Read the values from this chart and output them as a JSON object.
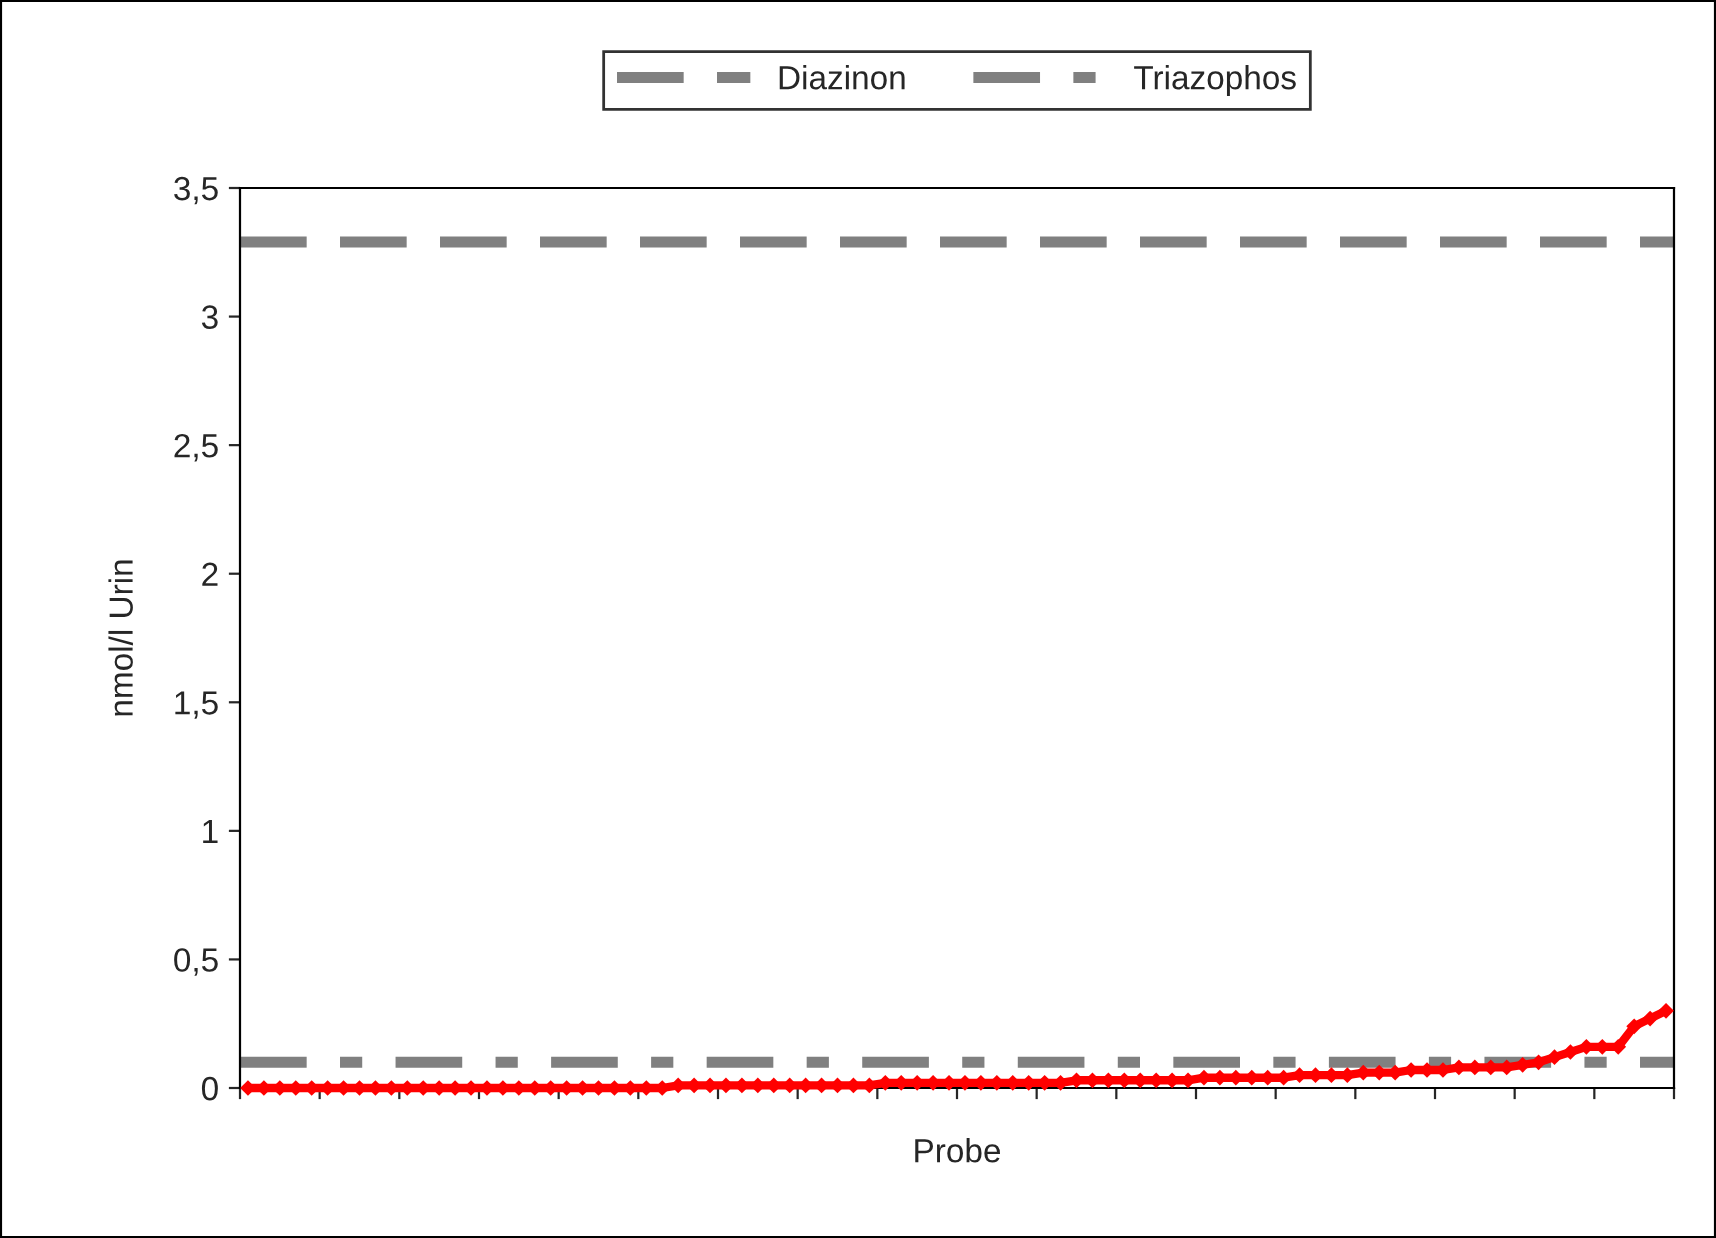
{
  "chart_data": {
    "type": "line",
    "xlabel": "Probe",
    "ylabel": "nmol/l Urin",
    "categories": [
      null,
      null,
      null,
      null,
      null,
      null,
      null,
      null,
      null,
      null,
      null,
      null,
      null,
      null,
      null,
      null,
      null,
      null,
      null,
      null,
      null,
      null,
      null,
      null,
      null,
      null,
      null,
      null,
      null,
      null,
      null,
      null,
      null,
      null,
      null,
      null,
      null,
      null,
      null,
      null,
      null,
      null,
      null,
      null,
      null,
      null,
      null,
      null,
      null,
      null,
      null,
      null,
      null,
      null,
      null,
      null,
      null,
      null,
      null,
      null,
      null,
      null,
      null,
      null,
      null,
      null,
      null,
      null,
      null,
      null,
      null,
      null,
      null,
      null,
      null,
      null,
      null,
      null,
      null,
      null,
      null,
      null,
      null,
      null,
      null,
      null,
      null,
      null,
      null,
      null
    ],
    "series": [
      {
        "color": "#ff0000",
        "values": [
          0,
          0,
          0,
          0,
          0,
          0,
          0,
          0,
          0,
          0,
          0,
          0,
          0,
          0,
          0,
          0,
          0,
          0,
          0,
          0,
          0,
          0,
          0,
          0,
          0,
          0,
          0,
          0.01,
          0.01,
          0.01,
          0.01,
          0.01,
          0.01,
          0.01,
          0.01,
          0.01,
          0.01,
          0.01,
          0.01,
          0.01,
          0.02,
          0.02,
          0.02,
          0.02,
          0.02,
          0.02,
          0.02,
          0.02,
          0.02,
          0.02,
          0.02,
          0.02,
          0.03,
          0.03,
          0.03,
          0.03,
          0.03,
          0.03,
          0.03,
          0.03,
          0.04,
          0.04,
          0.04,
          0.04,
          0.04,
          0.04,
          0.05,
          0.05,
          0.05,
          0.05,
          0.06,
          0.06,
          0.06,
          0.07,
          0.07,
          0.07,
          0.08,
          0.08,
          0.08,
          0.08,
          0.09,
          0.1,
          0.12,
          0.14,
          0.16,
          0.16,
          0.16,
          0.24,
          0.27,
          0.3
        ]
      }
    ],
    "marker": "diamond",
    "ref_lines": [
      {
        "axis": "y",
        "value": 3.29,
        "label": "Diazinon",
        "color": "#808080",
        "line_style": "dashed"
      },
      {
        "axis": "y",
        "value": 0.1,
        "label": "Triazophos",
        "color": "#808080",
        "line_style": "dashdot"
      }
    ],
    "ylim": [
      0,
      3.5
    ],
    "yticks": [
      0,
      {
        "value": 0.5,
        "label": "0,5"
      },
      1,
      {
        "value": 1.5,
        "label": "1,5"
      },
      2,
      {
        "value": 2.5,
        "label": "2,5"
      },
      3,
      {
        "value": 3.5,
        "label": "3,5"
      }
    ],
    "tick_labels": "y",
    "grid": false,
    "legend": "top"
  }
}
